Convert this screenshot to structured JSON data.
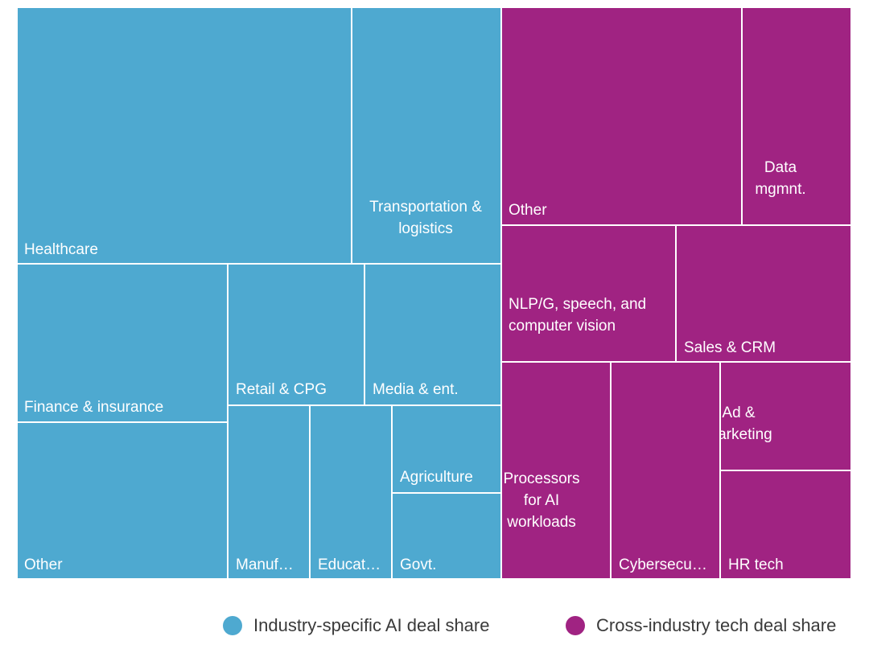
{
  "chart_data": {
    "type": "treemap",
    "colors": {
      "industry": "#4ea9d0",
      "cross": "#a02382"
    },
    "groups": [
      {
        "key": "industry",
        "name": "Industry-specific AI deal share",
        "color": "#4ea9d0",
        "tiles": [
          {
            "key": "healthcare",
            "label": "Healthcare"
          },
          {
            "key": "transportation",
            "label": "Transportation & logistics"
          },
          {
            "key": "finance",
            "label": "Finance & insurance"
          },
          {
            "key": "retail",
            "label": "Retail & CPG"
          },
          {
            "key": "media",
            "label": "Media & ent."
          },
          {
            "key": "agriculture",
            "label": "Agriculture"
          },
          {
            "key": "industry_other",
            "label": "Other"
          },
          {
            "key": "manufacturing",
            "label": "Manuf…"
          },
          {
            "key": "education",
            "label": "Educat…"
          },
          {
            "key": "govt",
            "label": "Govt."
          }
        ]
      },
      {
        "key": "cross",
        "name": "Cross-industry tech deal share",
        "color": "#a02382",
        "tiles": [
          {
            "key": "cross_other",
            "label": "Other"
          },
          {
            "key": "data",
            "label": "Data mgmnt."
          },
          {
            "key": "nlp",
            "label": "NLP/G, speech, and computer vision"
          },
          {
            "key": "sales",
            "label": "Sales & CRM"
          },
          {
            "key": "ad",
            "label": "Ad & marketing"
          },
          {
            "key": "processors",
            "label": "Processors for AI workloads"
          },
          {
            "key": "cyber",
            "label": "Cybersecu…"
          },
          {
            "key": "hr",
            "label": "HR tech"
          }
        ]
      }
    ]
  }
}
